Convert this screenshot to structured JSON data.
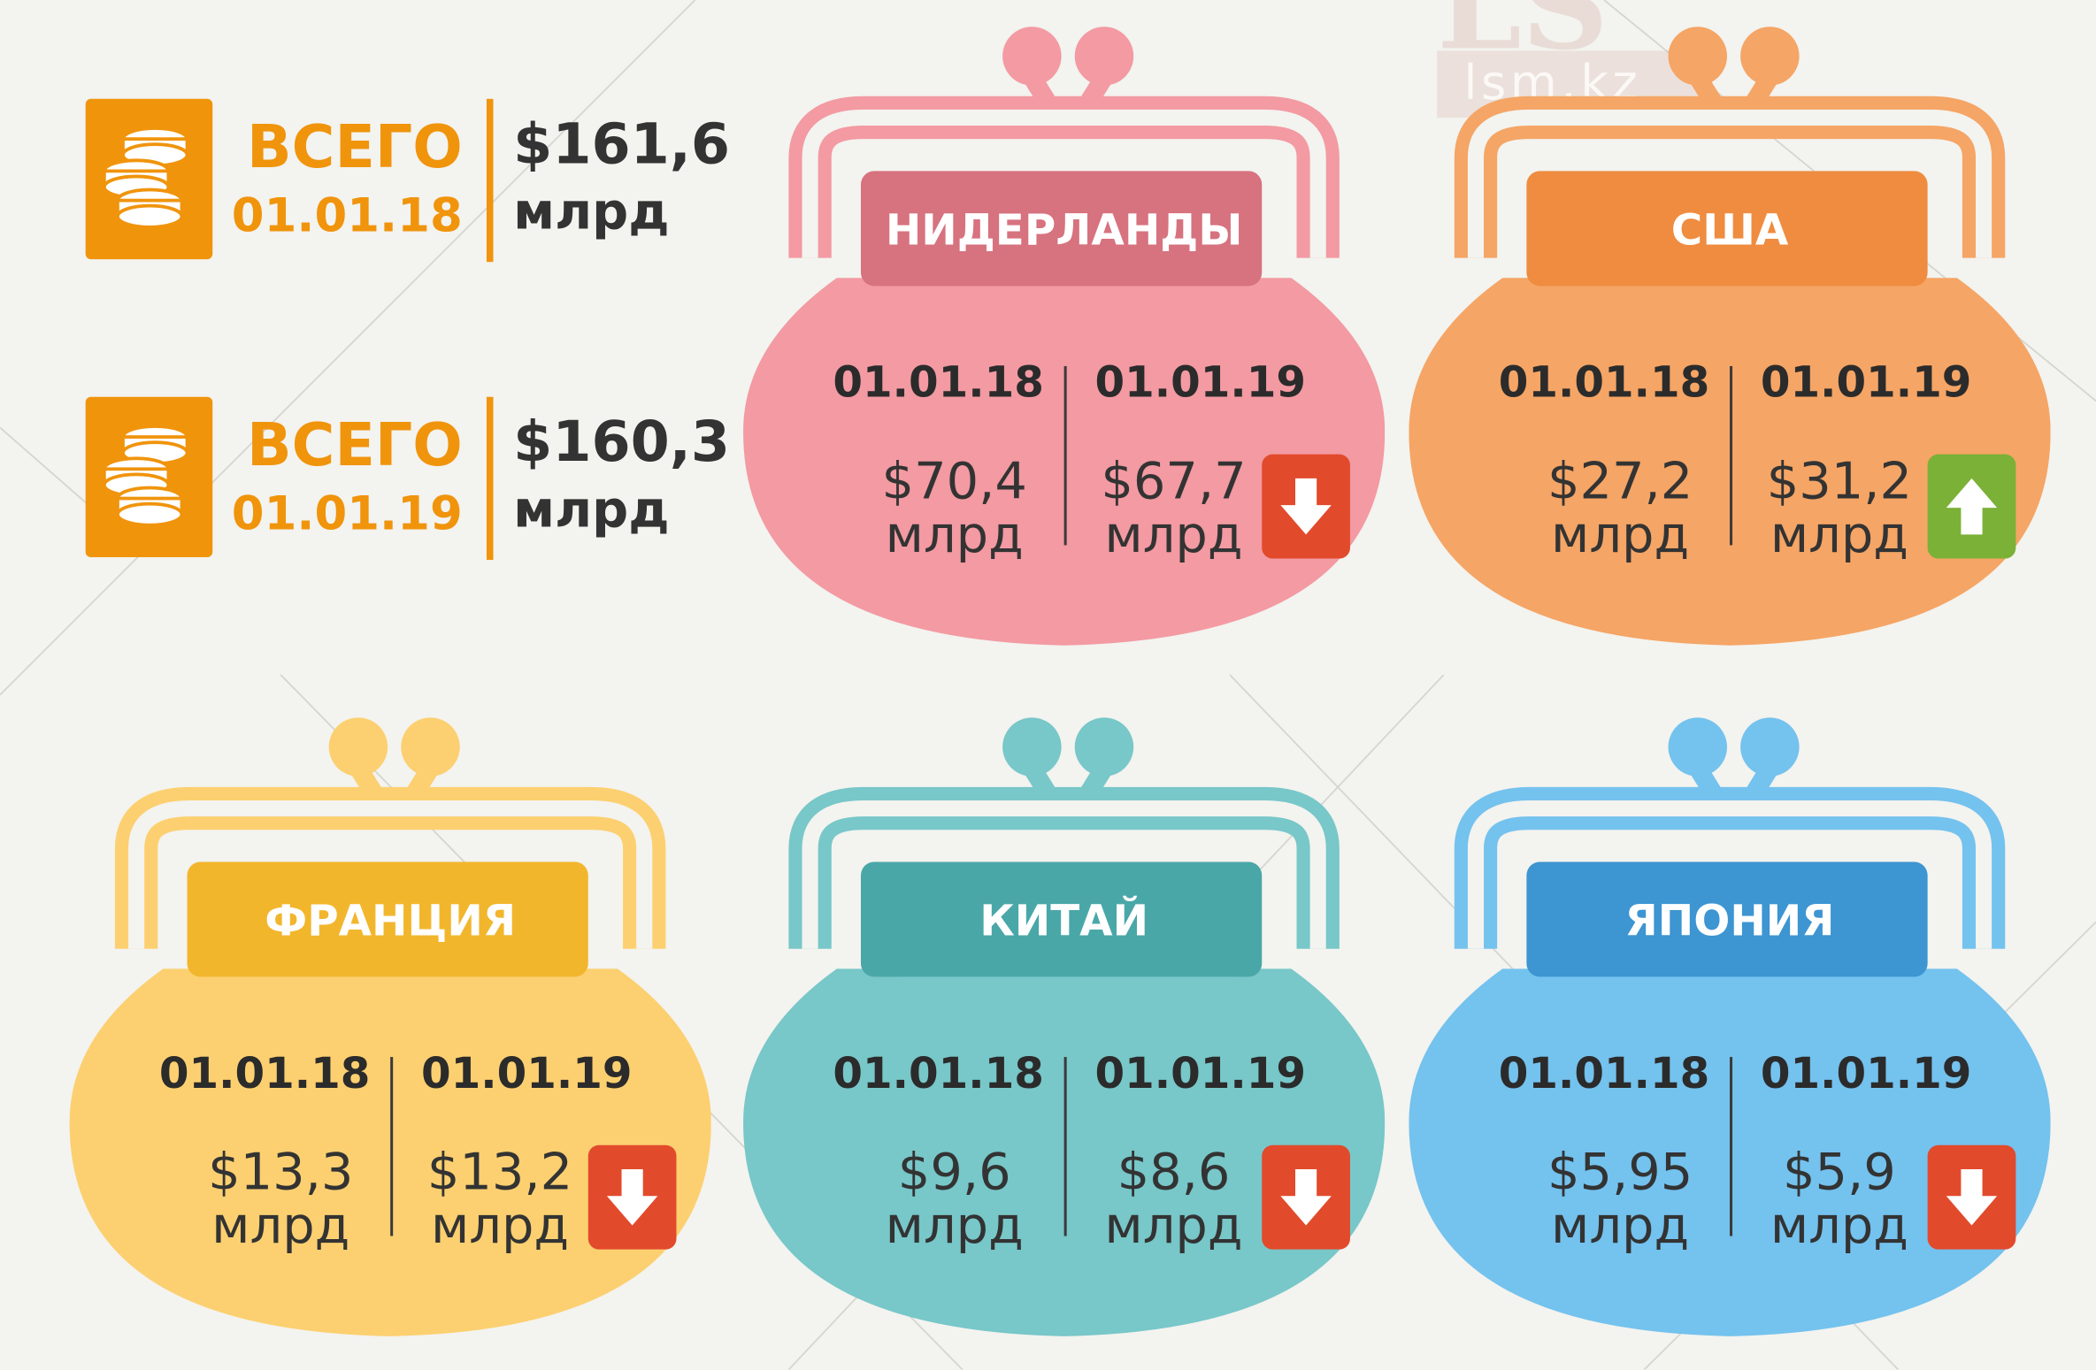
{
  "totals": [
    {
      "label": "ВСЕГО",
      "date": "01.01.18",
      "amount": "$161,6",
      "unit": "млрд"
    },
    {
      "label": "ВСЕГО",
      "date": "01.01.19",
      "amount": "$160,3",
      "unit": "млрд"
    }
  ],
  "countries": [
    {
      "name": "НИДЕРЛАНДЫ",
      "date1": "01.01.18",
      "date2": "01.01.19",
      "value1": "$70,4",
      "value2": "$67,7",
      "unit": "млрд",
      "trend": "down",
      "colors": {
        "body": "#f39aa2",
        "band": "#d7727f",
        "frame": "#f39aa2"
      }
    },
    {
      "name": "США",
      "date1": "01.01.18",
      "date2": "01.01.19",
      "value1": "$27,2",
      "value2": "$31,2",
      "unit": "млрд",
      "trend": "up",
      "colors": {
        "body": "#f5a565",
        "band": "#ef8c40",
        "frame": "#f5a565"
      }
    },
    {
      "name": "ФРАНЦИЯ",
      "date1": "01.01.18",
      "date2": "01.01.19",
      "value1": "$13,3",
      "value2": "$13,2",
      "unit": "млрд",
      "trend": "down",
      "colors": {
        "body": "#fcd070",
        "band": "#f2b62d",
        "frame": "#fcd070"
      }
    },
    {
      "name": "КИТАЙ",
      "date1": "01.01.18",
      "date2": "01.01.19",
      "value1": "$9,6",
      "value2": "$8,6",
      "unit": "млрд",
      "trend": "down",
      "colors": {
        "body": "#78c7c9",
        "band": "#4aa7a8",
        "frame": "#78c7c9"
      }
    },
    {
      "name": "ЯПОНИЯ",
      "date1": "01.01.18",
      "date2": "01.01.19",
      "value1": "$5,95",
      "value2": "$5,9",
      "unit": "млрд",
      "trend": "down",
      "colors": {
        "body": "#74c2ee",
        "band": "#3d95d2",
        "frame": "#74c2ee"
      }
    }
  ],
  "trend_colors": {
    "down": "#e24a2c",
    "up": "#7bb137"
  },
  "watermark": {
    "logo": "LS",
    "site": "lsm.kz"
  }
}
